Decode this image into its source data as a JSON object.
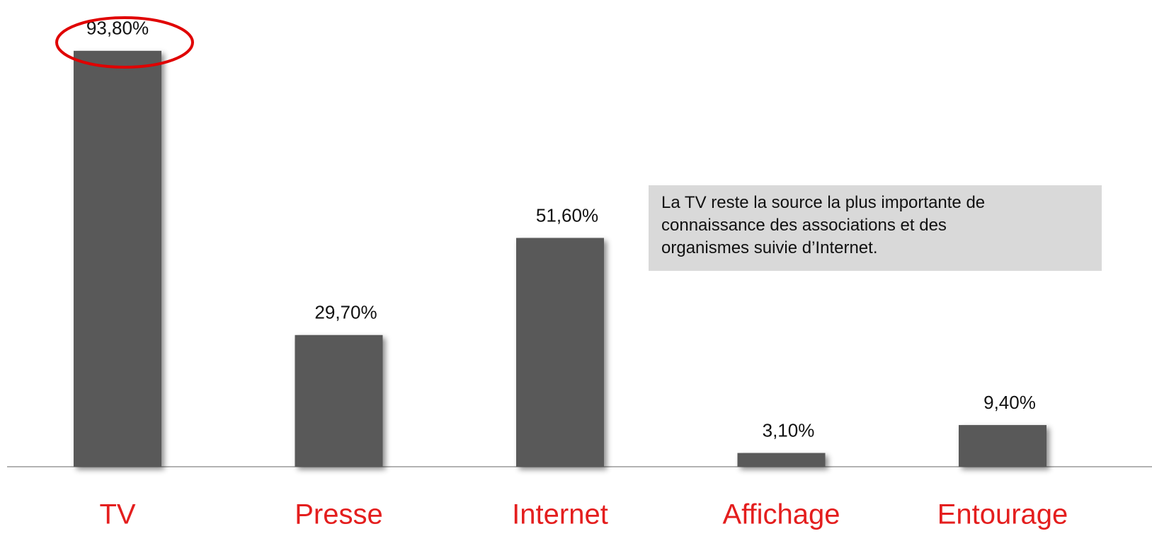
{
  "chart_data": {
    "type": "bar",
    "categories": [
      "TV",
      "Presse",
      "Internet",
      "Affichage",
      "Entourage"
    ],
    "values": [
      93.8,
      29.7,
      51.6,
      3.1,
      9.4
    ],
    "value_labels": [
      "93,80%",
      "29,70%",
      "51,60%",
      "3,10%",
      "9,40%"
    ],
    "color": "#595959",
    "category_color": "#e41e1e",
    "annotation": [
      "La TV reste la source la plus importante de",
      "connaissance des associations et des",
      "organismes suivie d’Internet."
    ]
  }
}
